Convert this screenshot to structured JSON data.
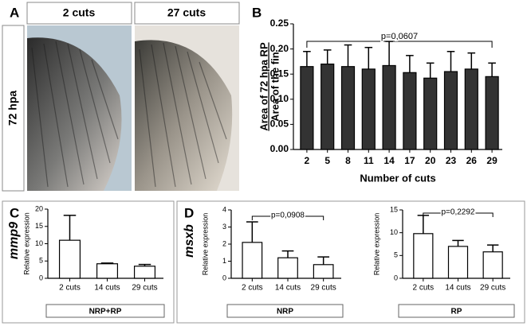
{
  "panel_labels": [
    "A",
    "B",
    "C",
    "D"
  ],
  "panel_a": {
    "columns": [
      "2 cuts",
      "27 cuts"
    ],
    "row": "72 hpa"
  },
  "chart_data": [
    {
      "type": "bar",
      "ylabel": "Area of 72 hpa RP",
      "ylabel2": "Area of the fin",
      "xlabel": "Number of cuts",
      "categories": [
        2,
        5,
        8,
        11,
        14,
        17,
        20,
        23,
        26,
        29
      ],
      "values": [
        0.165,
        0.17,
        0.165,
        0.16,
        0.167,
        0.153,
        0.142,
        0.155,
        0.16,
        0.145
      ],
      "errors": [
        0.03,
        0.028,
        0.043,
        0.043,
        0.048,
        0.034,
        0.03,
        0.04,
        0.032,
        0.027
      ],
      "color": "#333333",
      "edgecolor": "#000000",
      "ylim": [
        0,
        0.25
      ],
      "yticks": [
        {
          "value": 0,
          "label": "0.00"
        },
        {
          "value": 0.05,
          "label": "0.05"
        },
        {
          "value": 0.1,
          "label": "0.10"
        },
        {
          "value": 0.15,
          "label": "0.15"
        },
        {
          "value": 0.2,
          "label": "0.20"
        },
        {
          "value": 0.25,
          "label": "0.25"
        }
      ],
      "annotation": "p=0,0607"
    },
    {
      "type": "bar",
      "gene": "mmp9",
      "ylabel": "Relative expression",
      "group": "NRP+RP",
      "categories": [
        "2 cuts",
        "14 cuts",
        "29 cuts"
      ],
      "values": [
        11,
        4.2,
        3.5
      ],
      "errors": [
        7.2,
        0.2,
        0.5
      ],
      "color": "#ffffff",
      "edgecolor": "#000000",
      "ylim": [
        0,
        20
      ],
      "yticks": [
        0,
        5,
        10,
        15,
        20
      ]
    },
    {
      "type": "bar",
      "gene": "msxb",
      "ylabel": "Relative expression",
      "group": "NRP",
      "categories": [
        "2 cuts",
        "14 cuts",
        "29 cuts"
      ],
      "values": [
        2.1,
        1.2,
        0.8
      ],
      "errors": [
        1.2,
        0.4,
        0.45
      ],
      "color": "#ffffff",
      "edgecolor": "#000000",
      "ylim": [
        0,
        4
      ],
      "yticks": [
        0,
        1,
        2,
        3,
        4
      ],
      "annotation": "p=0,0908"
    },
    {
      "type": "bar",
      "ylabel": "Relative expression",
      "group": "RP",
      "categories": [
        "2 cuts",
        "14 cuts",
        "29 cuts"
      ],
      "values": [
        9.8,
        7.0,
        5.8
      ],
      "errors": [
        4.0,
        1.3,
        1.5
      ],
      "color": "#ffffff",
      "edgecolor": "#000000",
      "ylim": [
        0,
        15
      ],
      "yticks": [
        0,
        5,
        10,
        15
      ],
      "annotation": "p=0,2292"
    }
  ]
}
